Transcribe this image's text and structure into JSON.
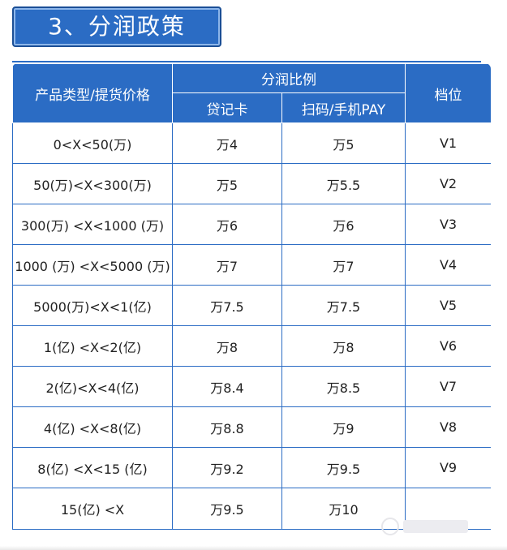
{
  "section_title": "3、分润政策",
  "table": {
    "header": {
      "product_col": "产品类型/提货价格",
      "ratio_group": "分润比例",
      "card_col": "贷记卡",
      "scan_col": "扫码/手机PAY",
      "level_col": "档位"
    },
    "rows": [
      {
        "range": "0<X<50(万)",
        "card": "万4",
        "scan": "万5",
        "level": "V1"
      },
      {
        "range": "50(万)<X<300(万)",
        "card": "万5",
        "scan": "万5.5",
        "level": "V2"
      },
      {
        "range": "300(万) <X<1000 (万)",
        "card": "万6",
        "scan": "万6",
        "level": "V3"
      },
      {
        "range": "1000 (万) <X<5000 (万)",
        "card": "万7",
        "scan": "万7",
        "level": "V4"
      },
      {
        "range": "5000(万)<X<1(亿)",
        "card": "万7.5",
        "scan": "万7.5",
        "level": "V5"
      },
      {
        "range": "1(亿) <X<2(亿)",
        "card": "万8",
        "scan": "万8",
        "level": "V6"
      },
      {
        "range": "2(亿)<X<4(亿)",
        "card": "万8.4",
        "scan": "万8.5",
        "level": "V7"
      },
      {
        "range": "4(亿) <X<8(亿)",
        "card": "万8.8",
        "scan": "万9",
        "level": "V8"
      },
      {
        "range": "8(亿) <X<15 (亿)",
        "card": "万9.2",
        "scan": "万9.5",
        "level": "V9"
      },
      {
        "range": "15(亿) <X",
        "card": "万9.5",
        "scan": "万10",
        "level": ""
      }
    ]
  },
  "colors": {
    "accent_blue": "#2b6cc4",
    "header_text": "#ffffff",
    "body_text": "#222222"
  }
}
